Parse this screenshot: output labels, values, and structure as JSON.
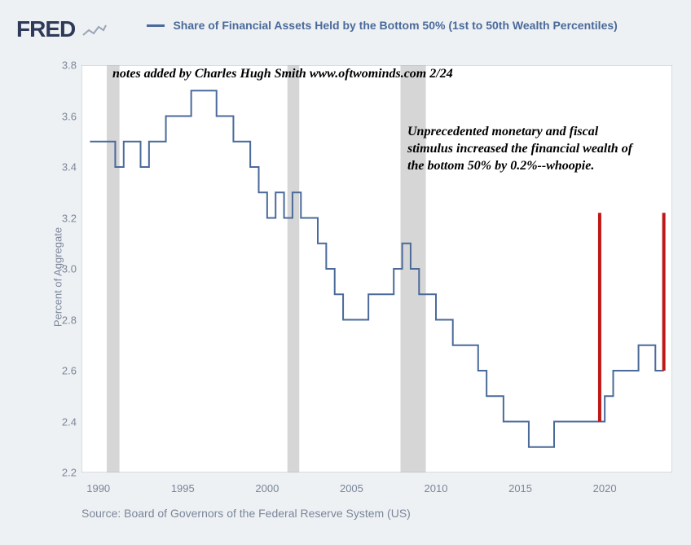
{
  "logo": "FRED",
  "legend": {
    "color": "#4a6a9a",
    "text": "Share of Financial Assets Held by the Bottom 50% (1st to 50th Wealth Percentiles)"
  },
  "y_axis": {
    "label": "Percent of Aggregate",
    "min": 2.2,
    "max": 3.8,
    "tick_step": 0.2,
    "ticks": [
      2.2,
      2.4,
      2.6,
      2.8,
      3.0,
      3.2,
      3.4,
      3.6,
      3.8
    ]
  },
  "x_axis": {
    "min": 1989,
    "max": 2024,
    "ticks": [
      1990,
      1995,
      2000,
      2005,
      2010,
      2015,
      2020
    ]
  },
  "chart": {
    "background_color": "#ffffff",
    "border_color": "#b0b7c3",
    "recession_color": "#d6d6d6",
    "line_color": "#4a6a9a",
    "line_width": 2,
    "highlight_color": "#c01818",
    "highlight_width": 4
  },
  "recessions": [
    {
      "start": 1990.5,
      "end": 1991.25
    },
    {
      "start": 2001.2,
      "end": 2001.9
    },
    {
      "start": 2007.9,
      "end": 2009.4
    }
  ],
  "highlight_lines": [
    {
      "year": 2019.7,
      "y0": 2.4,
      "y1": 3.22
    },
    {
      "year": 2023.5,
      "y0": 2.6,
      "y1": 3.22
    }
  ],
  "series": [
    {
      "year": 1989.5,
      "val": 3.5
    },
    {
      "year": 1990.0,
      "val": 3.5
    },
    {
      "year": 1990.5,
      "val": 3.5
    },
    {
      "year": 1991.0,
      "val": 3.4
    },
    {
      "year": 1991.5,
      "val": 3.5
    },
    {
      "year": 1992.0,
      "val": 3.5
    },
    {
      "year": 1992.5,
      "val": 3.4
    },
    {
      "year": 1993.0,
      "val": 3.5
    },
    {
      "year": 1993.5,
      "val": 3.5
    },
    {
      "year": 1994.0,
      "val": 3.6
    },
    {
      "year": 1994.5,
      "val": 3.6
    },
    {
      "year": 1995.0,
      "val": 3.6
    },
    {
      "year": 1995.5,
      "val": 3.7
    },
    {
      "year": 1996.0,
      "val": 3.7
    },
    {
      "year": 1996.5,
      "val": 3.7
    },
    {
      "year": 1997.0,
      "val": 3.6
    },
    {
      "year": 1997.5,
      "val": 3.6
    },
    {
      "year": 1998.0,
      "val": 3.5
    },
    {
      "year": 1998.5,
      "val": 3.5
    },
    {
      "year": 1999.0,
      "val": 3.4
    },
    {
      "year": 1999.5,
      "val": 3.3
    },
    {
      "year": 2000.0,
      "val": 3.2
    },
    {
      "year": 2000.5,
      "val": 3.3
    },
    {
      "year": 2001.0,
      "val": 3.2
    },
    {
      "year": 2001.5,
      "val": 3.3
    },
    {
      "year": 2002.0,
      "val": 3.2
    },
    {
      "year": 2002.5,
      "val": 3.2
    },
    {
      "year": 2003.0,
      "val": 3.1
    },
    {
      "year": 2003.5,
      "val": 3.0
    },
    {
      "year": 2004.0,
      "val": 2.9
    },
    {
      "year": 2004.5,
      "val": 2.8
    },
    {
      "year": 2005.0,
      "val": 2.8
    },
    {
      "year": 2005.5,
      "val": 2.8
    },
    {
      "year": 2006.0,
      "val": 2.9
    },
    {
      "year": 2006.5,
      "val": 2.9
    },
    {
      "year": 2007.0,
      "val": 2.9
    },
    {
      "year": 2007.5,
      "val": 3.0
    },
    {
      "year": 2008.0,
      "val": 3.1
    },
    {
      "year": 2008.5,
      "val": 3.0
    },
    {
      "year": 2009.0,
      "val": 2.9
    },
    {
      "year": 2009.5,
      "val": 2.9
    },
    {
      "year": 2010.0,
      "val": 2.8
    },
    {
      "year": 2010.5,
      "val": 2.8
    },
    {
      "year": 2011.0,
      "val": 2.7
    },
    {
      "year": 2011.5,
      "val": 2.7
    },
    {
      "year": 2012.0,
      "val": 2.7
    },
    {
      "year": 2012.5,
      "val": 2.6
    },
    {
      "year": 2013.0,
      "val": 2.5
    },
    {
      "year": 2013.5,
      "val": 2.5
    },
    {
      "year": 2014.0,
      "val": 2.4
    },
    {
      "year": 2014.5,
      "val": 2.4
    },
    {
      "year": 2015.0,
      "val": 2.4
    },
    {
      "year": 2015.5,
      "val": 2.3
    },
    {
      "year": 2016.0,
      "val": 2.3
    },
    {
      "year": 2016.5,
      "val": 2.3
    },
    {
      "year": 2017.0,
      "val": 2.4
    },
    {
      "year": 2017.5,
      "val": 2.4
    },
    {
      "year": 2018.0,
      "val": 2.4
    },
    {
      "year": 2018.5,
      "val": 2.4
    },
    {
      "year": 2019.0,
      "val": 2.4
    },
    {
      "year": 2019.5,
      "val": 2.4
    },
    {
      "year": 2020.0,
      "val": 2.5
    },
    {
      "year": 2020.5,
      "val": 2.6
    },
    {
      "year": 2021.0,
      "val": 2.6
    },
    {
      "year": 2021.5,
      "val": 2.6
    },
    {
      "year": 2022.0,
      "val": 2.7
    },
    {
      "year": 2022.5,
      "val": 2.7
    },
    {
      "year": 2023.0,
      "val": 2.6
    },
    {
      "year": 2023.5,
      "val": 2.6
    }
  ],
  "annotations": {
    "top": "notes added by Charles Hugh Smith www.oftwominds.com 2/24",
    "inset": "Unprecedented monetary and fiscal stimulus increased the financial wealth of the bottom 50% by 0.2%--whoopie."
  },
  "source": "Source: Board of Governors of the Federal Reserve System (US)"
}
